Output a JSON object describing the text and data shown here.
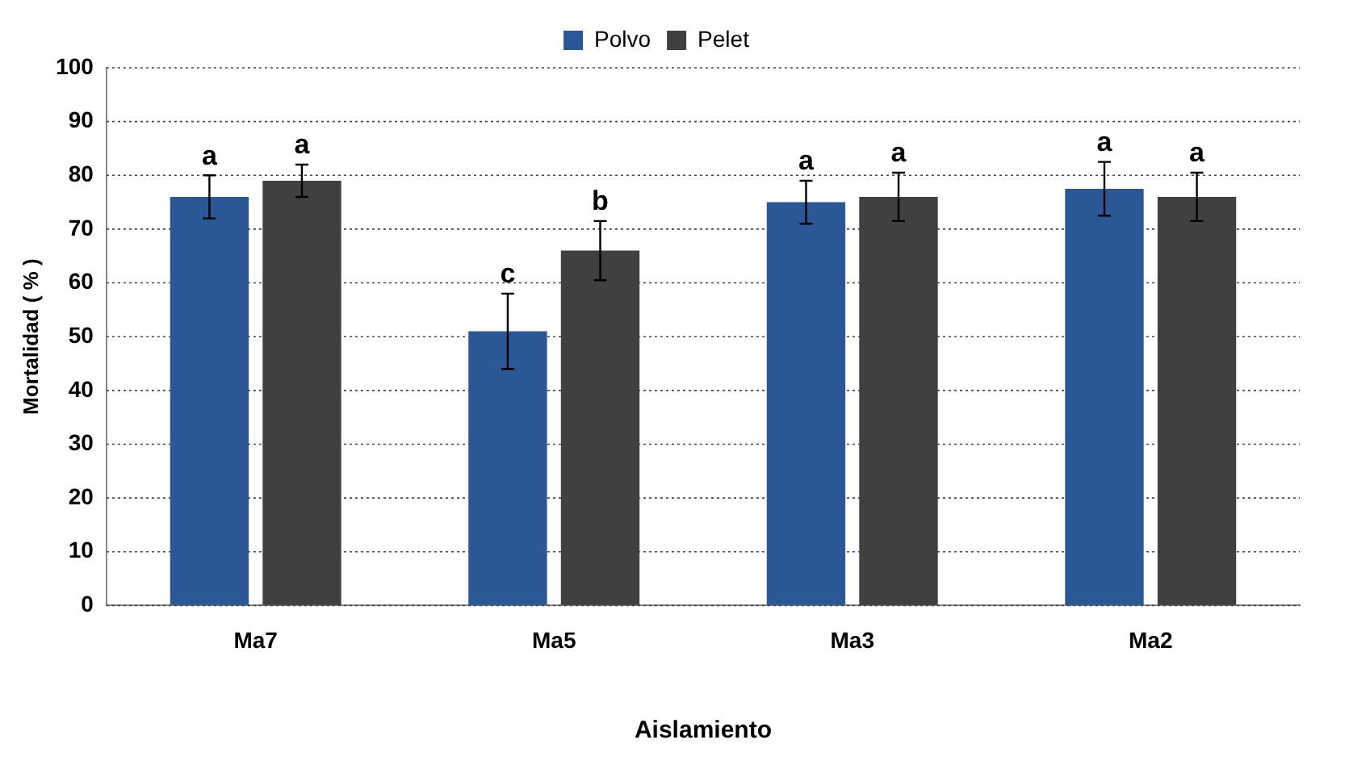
{
  "chart_data": {
    "type": "bar",
    "xlabel": "Aislamiento",
    "ylabel": "Mortalidad ( % )",
    "categories": [
      "Ma7",
      "Ma5",
      "Ma3",
      "Ma2"
    ],
    "series": [
      {
        "name": "Polvo",
        "color": "#2b5797",
        "values": [
          76,
          51,
          75,
          77.5
        ],
        "errors": [
          4,
          7,
          4,
          5
        ],
        "value_labels": [
          "a",
          "c",
          "a",
          "a"
        ]
      },
      {
        "name": "Pelet",
        "color": "#404040",
        "values": [
          79,
          66,
          76,
          76
        ],
        "errors": [
          3,
          5.5,
          4.5,
          4.5
        ],
        "value_labels": [
          "a",
          "b",
          "a",
          "a"
        ]
      }
    ],
    "ylim": [
      0,
      100
    ],
    "yticks": [
      0,
      10,
      20,
      30,
      40,
      50,
      60,
      70,
      80,
      90,
      100
    ],
    "grid": "y",
    "legend": "top"
  }
}
